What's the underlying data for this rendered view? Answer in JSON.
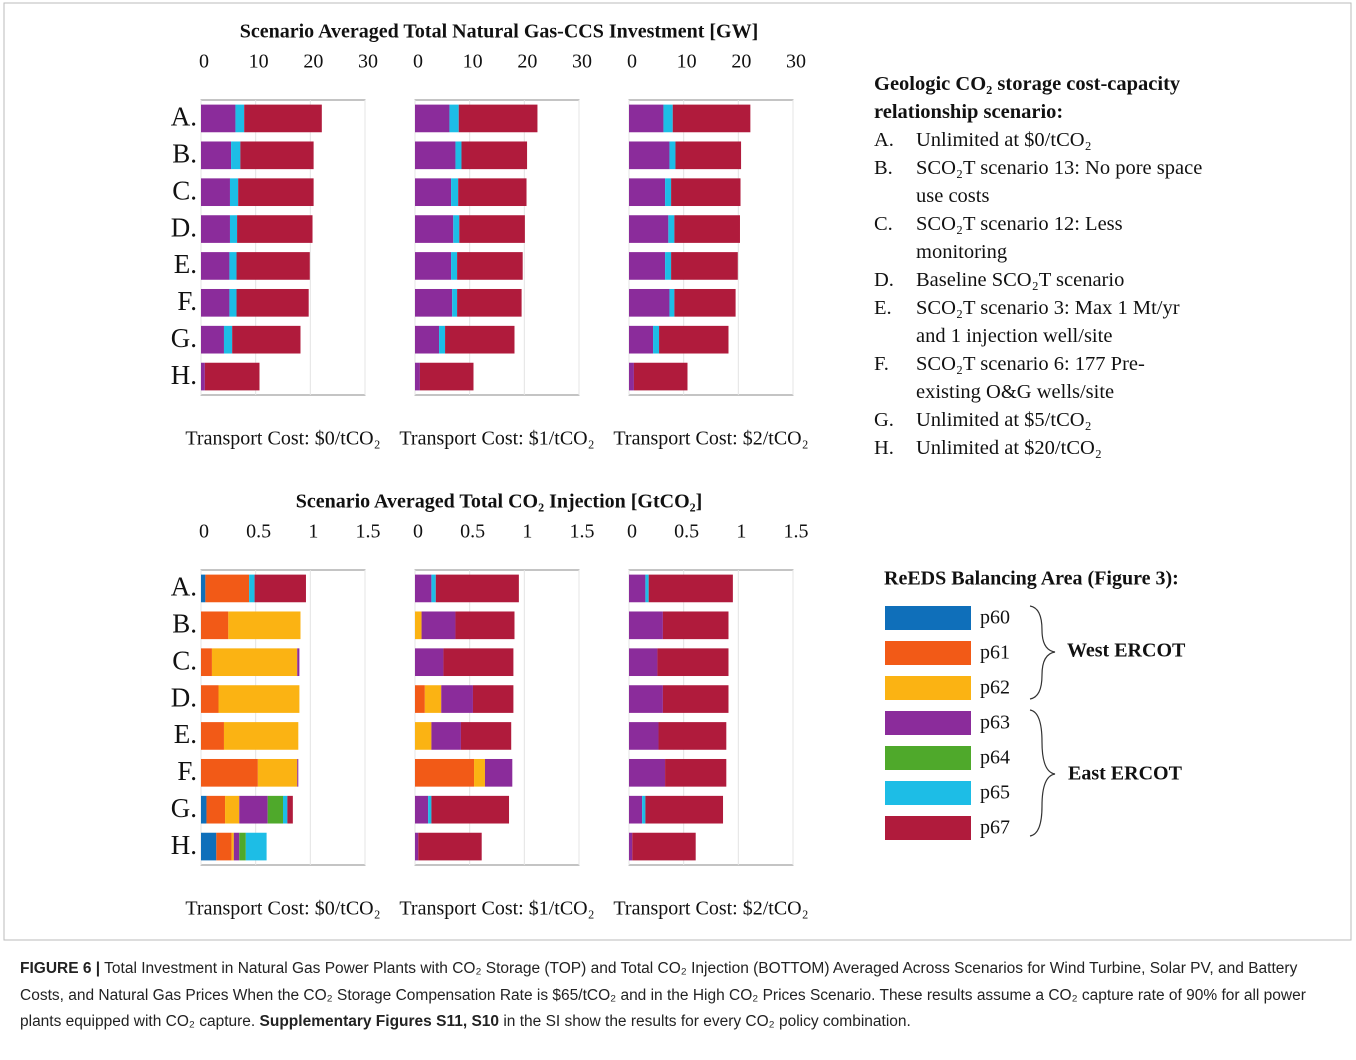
{
  "chart_data": [
    {
      "type": "bar",
      "orientation": "horizontal",
      "stacked": true,
      "title": "Scenario Averaged Total Natural Gas-CCS Investment [GW]",
      "xlabel": "Transport Cost: $0/tCO₂",
      "categories": [
        "A.",
        "B.",
        "C.",
        "D.",
        "E.",
        "F.",
        "G.",
        "H."
      ],
      "xlim": [
        0,
        30
      ],
      "xticks": [
        0,
        10,
        20,
        30
      ],
      "grid": true,
      "series": [
        {
          "values": [
            0,
            0,
            0,
            0,
            0,
            0,
            0,
            0
          ]
        },
        {
          "values": [
            0,
            0,
            0,
            0,
            0,
            0,
            0,
            0
          ]
        },
        {
          "values": [
            0,
            0,
            0,
            0,
            0,
            0,
            0,
            0
          ]
        },
        {
          "values": [
            6.3,
            5.5,
            5.3,
            5.3,
            5.2,
            5.2,
            4.2,
            0.7
          ]
        },
        {
          "values": [
            0,
            0,
            0,
            0,
            0,
            0,
            0,
            0
          ]
        },
        {
          "values": [
            1.6,
            1.7,
            1.5,
            1.3,
            1.3,
            1.3,
            1.5,
            0
          ]
        },
        {
          "values": [
            14.2,
            13.4,
            13.8,
            13.8,
            13.4,
            13.2,
            12.5,
            10
          ]
        }
      ]
    },
    {
      "type": "bar",
      "orientation": "horizontal",
      "stacked": true,
      "xlabel": "Transport Cost: $1/tCO₂",
      "xlim": [
        0,
        30
      ],
      "xticks": [
        0,
        10,
        20,
        30
      ],
      "grid": true,
      "series": [
        {
          "values": [
            0,
            0,
            0,
            0,
            0,
            0,
            0,
            0
          ]
        },
        {
          "values": [
            0,
            0,
            0,
            0,
            0,
            0,
            0,
            0
          ]
        },
        {
          "values": [
            0,
            0,
            0,
            0,
            0,
            0,
            0,
            0
          ]
        },
        {
          "values": [
            6.3,
            7.4,
            6.6,
            7,
            6.6,
            6.8,
            4.4,
            0.9
          ]
        },
        {
          "values": [
            0,
            0,
            0,
            0,
            0,
            0,
            0,
            0
          ]
        },
        {
          "values": [
            1.7,
            1.1,
            1.3,
            1.1,
            1.1,
            0.9,
            1.1,
            0
          ]
        },
        {
          "values": [
            14.4,
            12,
            12.5,
            12,
            12,
            11.8,
            12.7,
            9.8
          ]
        }
      ]
    },
    {
      "type": "bar",
      "orientation": "horizontal",
      "stacked": true,
      "xlabel": "Transport Cost: $2/tCO₂",
      "xlim": [
        0,
        30
      ],
      "xticks": [
        0,
        10,
        20,
        30
      ],
      "grid": true,
      "series": [
        {
          "values": [
            0,
            0,
            0,
            0,
            0,
            0,
            0,
            0
          ]
        },
        {
          "values": [
            0,
            0,
            0,
            0,
            0,
            0,
            0,
            0
          ]
        },
        {
          "values": [
            0,
            0,
            0,
            0,
            0,
            0,
            0,
            0
          ]
        },
        {
          "values": [
            6.3,
            7.4,
            6.6,
            7.2,
            6.6,
            7.4,
            4.4,
            0.9
          ]
        },
        {
          "values": [
            0,
            0,
            0,
            0,
            0,
            0,
            0,
            0
          ]
        },
        {
          "values": [
            1.7,
            1.1,
            1.1,
            1.1,
            1.1,
            0.9,
            1.1,
            0
          ]
        },
        {
          "values": [
            14.2,
            12,
            12.7,
            12,
            12.2,
            11.2,
            12.7,
            9.8
          ]
        }
      ]
    },
    {
      "type": "bar",
      "orientation": "horizontal",
      "stacked": true,
      "title": "Scenario Averaged Total CO₂ Injection [GtCO₂]",
      "xlabel": "Transport Cost: $0/tCO₂",
      "categories": [
        "A.",
        "B.",
        "C.",
        "D.",
        "E.",
        "F.",
        "G.",
        "H."
      ],
      "xlim": [
        0,
        1.5
      ],
      "xticks": [
        0,
        0.5,
        1,
        1.5
      ],
      "grid": true,
      "series": [
        {
          "values": [
            0.04,
            0,
            0,
            0,
            0,
            0,
            0.05,
            0.14
          ]
        },
        {
          "values": [
            0.4,
            0.25,
            0.1,
            0.16,
            0.21,
            0.52,
            0.17,
            0.14
          ]
        },
        {
          "values": [
            0,
            0.66,
            0.78,
            0.74,
            0.68,
            0.36,
            0.13,
            0.02
          ]
        },
        {
          "values": [
            0,
            0,
            0.02,
            0,
            0,
            0.01,
            0.26,
            0.05
          ]
        },
        {
          "values": [
            0,
            0,
            0,
            0,
            0,
            0,
            0.14,
            0.06
          ]
        },
        {
          "values": [
            0.05,
            0,
            0,
            0,
            0,
            0,
            0.04,
            0.19
          ]
        },
        {
          "values": [
            0.47,
            0,
            0,
            0,
            0,
            0,
            0.05,
            0
          ]
        }
      ]
    },
    {
      "type": "bar",
      "orientation": "horizontal",
      "stacked": true,
      "xlabel": "Transport Cost: $1/tCO₂",
      "xlim": [
        0,
        1.5
      ],
      "xticks": [
        0,
        0.5,
        1,
        1.5
      ],
      "grid": true,
      "series": [
        {
          "values": [
            0,
            0,
            0,
            0,
            0,
            0,
            0,
            0
          ]
        },
        {
          "values": [
            0,
            0,
            0,
            0.09,
            0,
            0.54,
            0,
            0
          ]
        },
        {
          "values": [
            0,
            0.06,
            0,
            0.15,
            0.15,
            0.1,
            0,
            0
          ]
        },
        {
          "values": [
            0.15,
            0.31,
            0.26,
            0.29,
            0.27,
            0.25,
            0.12,
            0.03
          ]
        },
        {
          "values": [
            0,
            0,
            0,
            0,
            0,
            0,
            0,
            0
          ]
        },
        {
          "values": [
            0.04,
            0,
            0,
            0,
            0,
            0,
            0.03,
            0
          ]
        },
        {
          "values": [
            0.76,
            0.54,
            0.64,
            0.37,
            0.46,
            0,
            0.71,
            0.58
          ]
        }
      ]
    },
    {
      "type": "bar",
      "orientation": "horizontal",
      "stacked": true,
      "xlabel": "Transport Cost: $2/tCO₂",
      "xlim": [
        0,
        1.5
      ],
      "xticks": [
        0,
        0.5,
        1,
        1.5
      ],
      "grid": true,
      "series": [
        {
          "values": [
            0,
            0,
            0,
            0,
            0,
            0,
            0,
            0
          ]
        },
        {
          "values": [
            0,
            0,
            0,
            0,
            0,
            0,
            0,
            0
          ]
        },
        {
          "values": [
            0,
            0,
            0,
            0,
            0,
            0,
            0,
            0
          ]
        },
        {
          "values": [
            0.15,
            0.31,
            0.26,
            0.31,
            0.27,
            0.33,
            0.12,
            0.03
          ]
        },
        {
          "values": [
            0,
            0,
            0,
            0,
            0,
            0,
            0,
            0
          ]
        },
        {
          "values": [
            0.03,
            0,
            0,
            0,
            0,
            0,
            0.03,
            0
          ]
        },
        {
          "values": [
            0.77,
            0.6,
            0.65,
            0.6,
            0.62,
            0.56,
            0.71,
            0.58
          ]
        }
      ]
    }
  ],
  "legend": {
    "title": "ReEDS Balancing Area (Figure 3):",
    "entries": [
      {
        "name": "p60",
        "color": "#0f6fba"
      },
      {
        "name": "p61",
        "color": "#f25a17"
      },
      {
        "name": "p62",
        "color": "#fbb313"
      },
      {
        "name": "p63",
        "color": "#8b2c9b"
      },
      {
        "name": "p64",
        "color": "#4fa92b"
      },
      {
        "name": "p65",
        "color": "#1dbde6"
      },
      {
        "name": "p67",
        "color": "#b01b3c"
      }
    ],
    "groups": [
      "West ERCOT",
      "East ERCOT"
    ]
  },
  "scenario_legend": {
    "title": "Geologic CO₂ storage cost-capacity relationship scenario:",
    "items": [
      {
        "key": "A.",
        "text": "Unlimited at $0/tCO₂"
      },
      {
        "key": "B.",
        "text": "SCO₂T scenario 13: No pore space use costs"
      },
      {
        "key": "C.",
        "text": "SCO₂T scenario 12: Less monitoring"
      },
      {
        "key": "D.",
        "text": "Baseline SCO₂T scenario"
      },
      {
        "key": "E.",
        "text": "SCO₂T scenario 3: Max 1 Mt/yr and 1 injection well/site"
      },
      {
        "key": "F.",
        "text": "SCO₂T scenario 6: 177 Pre-existing O&G wells/site"
      },
      {
        "key": "G.",
        "text": "Unlimited at $5/tCO₂"
      },
      {
        "key": "H.",
        "text": "Unlimited at $20/tCO₂"
      }
    ]
  },
  "caption": {
    "label": "FIGURE 6 |",
    "text": "Total Investment in Natural Gas Power Plants with CO₂ Storage (TOP) and Total CO₂ Injection (BOTTOM) Averaged Across Scenarios for Wind Turbine, Solar PV, and Battery Costs, and Natural Gas Prices When the CO₂ Storage Compensation Rate is $65/tCO₂ and in the High CO₂ Prices Scenario. These results assume a CO₂ capture rate of 90% for all power plants equipped with CO₂ capture.",
    "reference": "Supplementary Figures S11, S10",
    "text_after": "in the SI show the results for every CO₂ policy combination."
  }
}
